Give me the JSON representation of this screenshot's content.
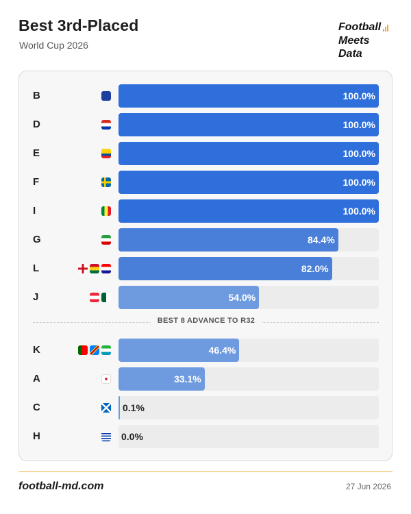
{
  "header": {
    "title": "Best 3rd-Placed",
    "subtitle": "World Cup 2026"
  },
  "logo": {
    "line1": "Football",
    "line2": "Meets",
    "line3": "Data",
    "icon": "bar-chart-icon"
  },
  "divider_label": "BEST 8 ADVANCE TO R32",
  "footer": {
    "site": "football-md.com",
    "date": "27 Jun 2026"
  },
  "colors": {
    "strong": "#2f6fdb",
    "mid": "#4a7fd9",
    "light": "#6e9be0",
    "track": "#ececec",
    "accent": "#f2a93b"
  },
  "chart_data": {
    "type": "bar",
    "orientation": "horizontal",
    "title": "Best 3rd-Placed",
    "subtitle": "World Cup 2026",
    "categories": [
      "B",
      "D",
      "E",
      "F",
      "I",
      "G",
      "L",
      "J",
      "K",
      "A",
      "C",
      "H"
    ],
    "values": [
      100.0,
      100.0,
      100.0,
      100.0,
      100.0,
      84.4,
      82.0,
      54.0,
      46.4,
      33.1,
      0.1,
      0.0
    ],
    "labels": [
      "100.0%",
      "100.0%",
      "100.0%",
      "100.0%",
      "100.0%",
      "84.4%",
      "82.0%",
      "54.0%",
      "46.4%",
      "33.1%",
      "0.1%",
      "0.0%"
    ],
    "flags": [
      [
        "bosnia-flag-icon"
      ],
      [
        "paraguay-flag-icon"
      ],
      [
        "ecuador-flag-icon"
      ],
      [
        "sweden-flag-icon"
      ],
      [
        "senegal-flag-icon"
      ],
      [
        "iran-flag-icon"
      ],
      [
        "england-flag-icon",
        "ghana-flag-icon",
        "croatia-flag-icon"
      ],
      [
        "austria-flag-icon",
        "algeria-flag-icon"
      ],
      [
        "portugal-flag-icon",
        "dr-congo-flag-icon",
        "uzbekistan-flag-icon"
      ],
      [
        "south-korea-flag-icon"
      ],
      [
        "scotland-flag-icon"
      ],
      [
        "uruguay-flag-icon"
      ]
    ],
    "xlim": [
      0,
      100
    ],
    "grid": false,
    "legend": "none"
  }
}
